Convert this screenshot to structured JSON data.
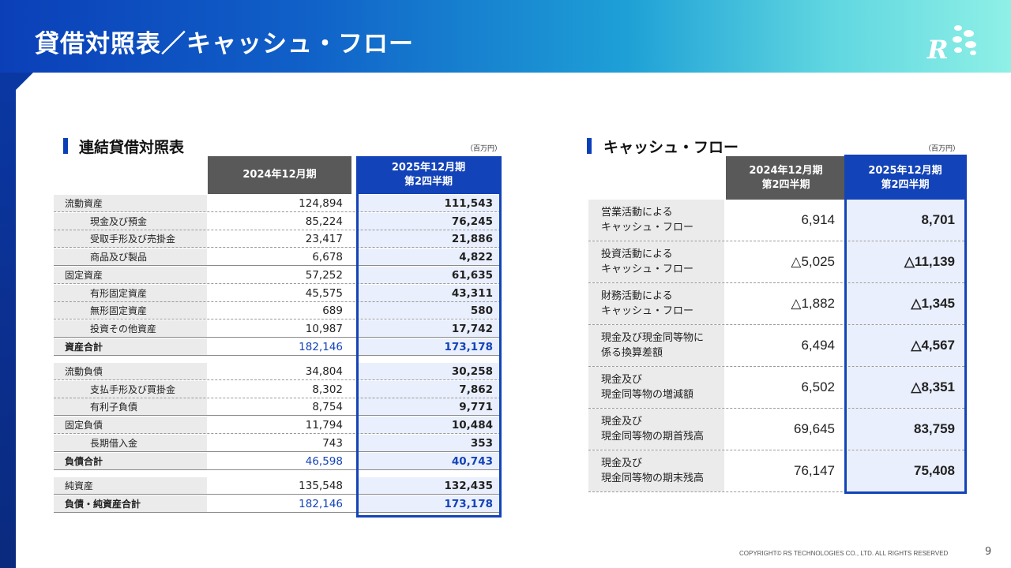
{
  "page": {
    "title": "貸借対照表／キャッシュ・フロー",
    "logo_text": "R",
    "footer": "COPYRIGHT© RS TECHNOLOGIES CO., LTD. ALL RIGHTS RESERVED",
    "page_number": "9"
  },
  "balance_sheet": {
    "title": "連結貸借対照表",
    "unit": "（百万円）",
    "col1": "2024年12月期",
    "col2": "2025年12月期\n第2四半期",
    "rows": [
      {
        "label": "流動資産",
        "v1": "124,894",
        "v2": "111,543"
      },
      {
        "label": "現金及び預金",
        "v1": "85,224",
        "v2": "76,245"
      },
      {
        "label": "受取手形及び売掛金",
        "v1": "23,417",
        "v2": "21,886"
      },
      {
        "label": "商品及び製品",
        "v1": "6,678",
        "v2": "4,822"
      },
      {
        "label": "固定資産",
        "v1": "57,252",
        "v2": "61,635"
      },
      {
        "label": "有形固定資産",
        "v1": "45,575",
        "v2": "43,311"
      },
      {
        "label": "無形固定資産",
        "v1": "689",
        "v2": "580"
      },
      {
        "label": "投資その他資産",
        "v1": "10,987",
        "v2": "17,742"
      },
      {
        "label": "資産合計",
        "v1": "182,146",
        "v2": "173,178"
      },
      {
        "label": "流動負債",
        "v1": "34,804",
        "v2": "30,258"
      },
      {
        "label": "支払手形及び買掛金",
        "v1": "8,302",
        "v2": "7,862"
      },
      {
        "label": "有利子負債",
        "v1": "8,754",
        "v2": "9,771"
      },
      {
        "label": "固定負債",
        "v1": "11,794",
        "v2": "10,484"
      },
      {
        "label": "長期借入金",
        "v1": "743",
        "v2": "353"
      },
      {
        "label": "負債合計",
        "v1": "46,598",
        "v2": "40,743"
      },
      {
        "label": "純資産",
        "v1": "135,548",
        "v2": "132,435"
      },
      {
        "label": "負債・純資産合計",
        "v1": "182,146",
        "v2": "173,178"
      }
    ]
  },
  "cash_flow": {
    "title": "キャッシュ・フロー",
    "unit": "（百万円）",
    "col1": "2024年12月期\n第2四半期",
    "col2": "2025年12月期\n第2四半期",
    "rows": [
      {
        "label": "営業活動による\nキャッシュ・フロー",
        "v1": "6,914",
        "v2": "8,701"
      },
      {
        "label": "投資活動による\nキャッシュ・フロー",
        "v1": "△5,025",
        "v2": "△11,139"
      },
      {
        "label": "財務活動による\nキャッシュ・フロー",
        "v1": "△1,882",
        "v2": "△1,345"
      },
      {
        "label": "現金及び現金同等物に\n係る換算差額",
        "v1": "6,494",
        "v2": "△4,567"
      },
      {
        "label": "現金及び\n現金同等物の増減額",
        "v1": "6,502",
        "v2": "△8,351"
      },
      {
        "label": "現金及び\n現金同等物の期首残高",
        "v1": "69,645",
        "v2": "83,759"
      },
      {
        "label": "現金及び\n現金同等物の期末残高",
        "v1": "76,147",
        "v2": "75,408"
      }
    ]
  },
  "colors": {
    "accent_blue": "#1343b8",
    "header_gray": "#595959",
    "highlight_bg": "#e9effc"
  }
}
